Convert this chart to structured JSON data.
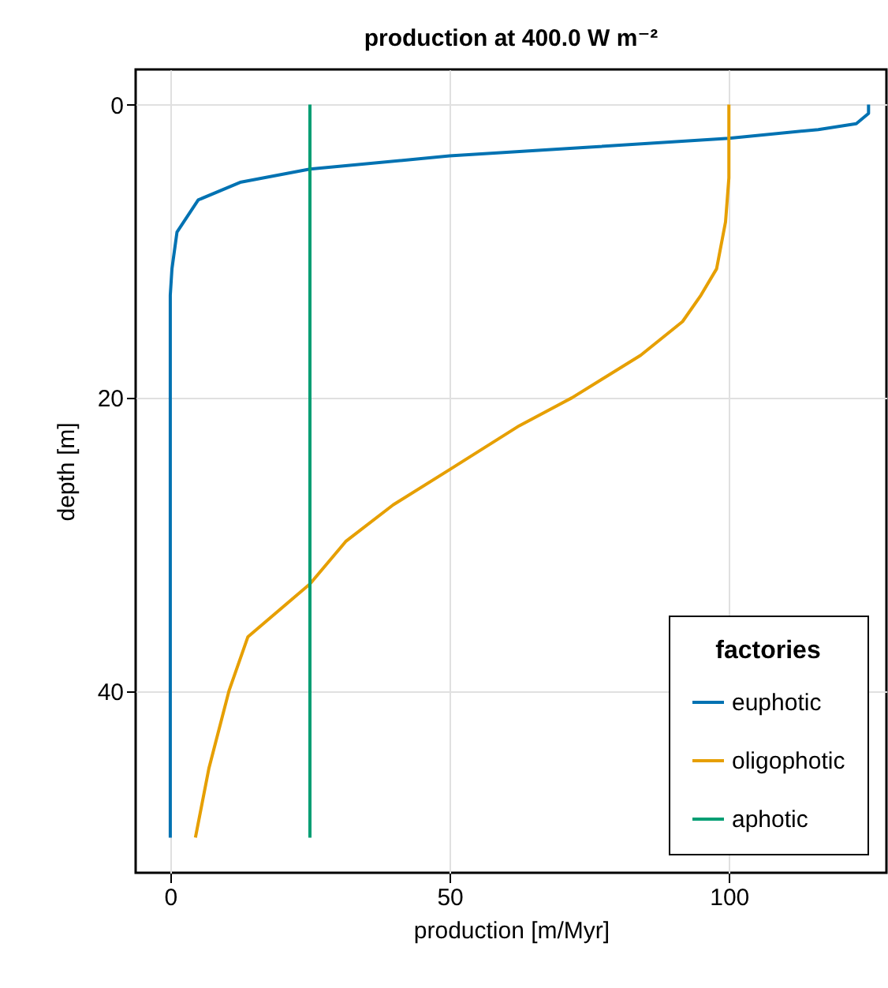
{
  "chart_data": {
    "type": "line",
    "title": "production at 400.0 W m⁻²",
    "xlabel": "production [m/Myr]",
    "ylabel": "depth [m]",
    "legend_title": "factories",
    "series": [
      {
        "name": "euphotic",
        "color": "#0072b2",
        "x": [
          125,
          125,
          122.8,
          116,
          100,
          75,
          50,
          25,
          12.5,
          5,
          1.2,
          0.3,
          0,
          0
        ],
        "values": [
          0,
          0.6,
          1.3,
          1.7,
          2.3,
          2.9,
          3.5,
          4.4,
          5.3,
          6.5,
          8.7,
          11.2,
          13,
          50
        ]
      },
      {
        "name": "oligophotic",
        "color": "#e69f00",
        "x": [
          100,
          100,
          99.4,
          97.8,
          95,
          91.7,
          84.2,
          71.9,
          62.5,
          50,
          39.9,
          31.4,
          25,
          13.9,
          10.5,
          6.9,
          4.5
        ],
        "values": [
          0,
          5,
          8,
          11.2,
          13,
          14.8,
          17.1,
          20,
          21.9,
          24.9,
          27.3,
          29.8,
          32.7,
          36.3,
          40,
          45.3,
          50
        ]
      },
      {
        "name": "aphotic",
        "color": "#009e73",
        "x": [
          25,
          25
        ],
        "values": [
          0,
          50
        ]
      }
    ],
    "xlim": [
      -6.2,
      128.2
    ],
    "ylim": [
      52.4,
      -2.4
    ],
    "xticks": [
      0,
      50,
      100
    ],
    "yticks": [
      0,
      20,
      40
    ],
    "grid": true,
    "legend": "bottom right"
  }
}
